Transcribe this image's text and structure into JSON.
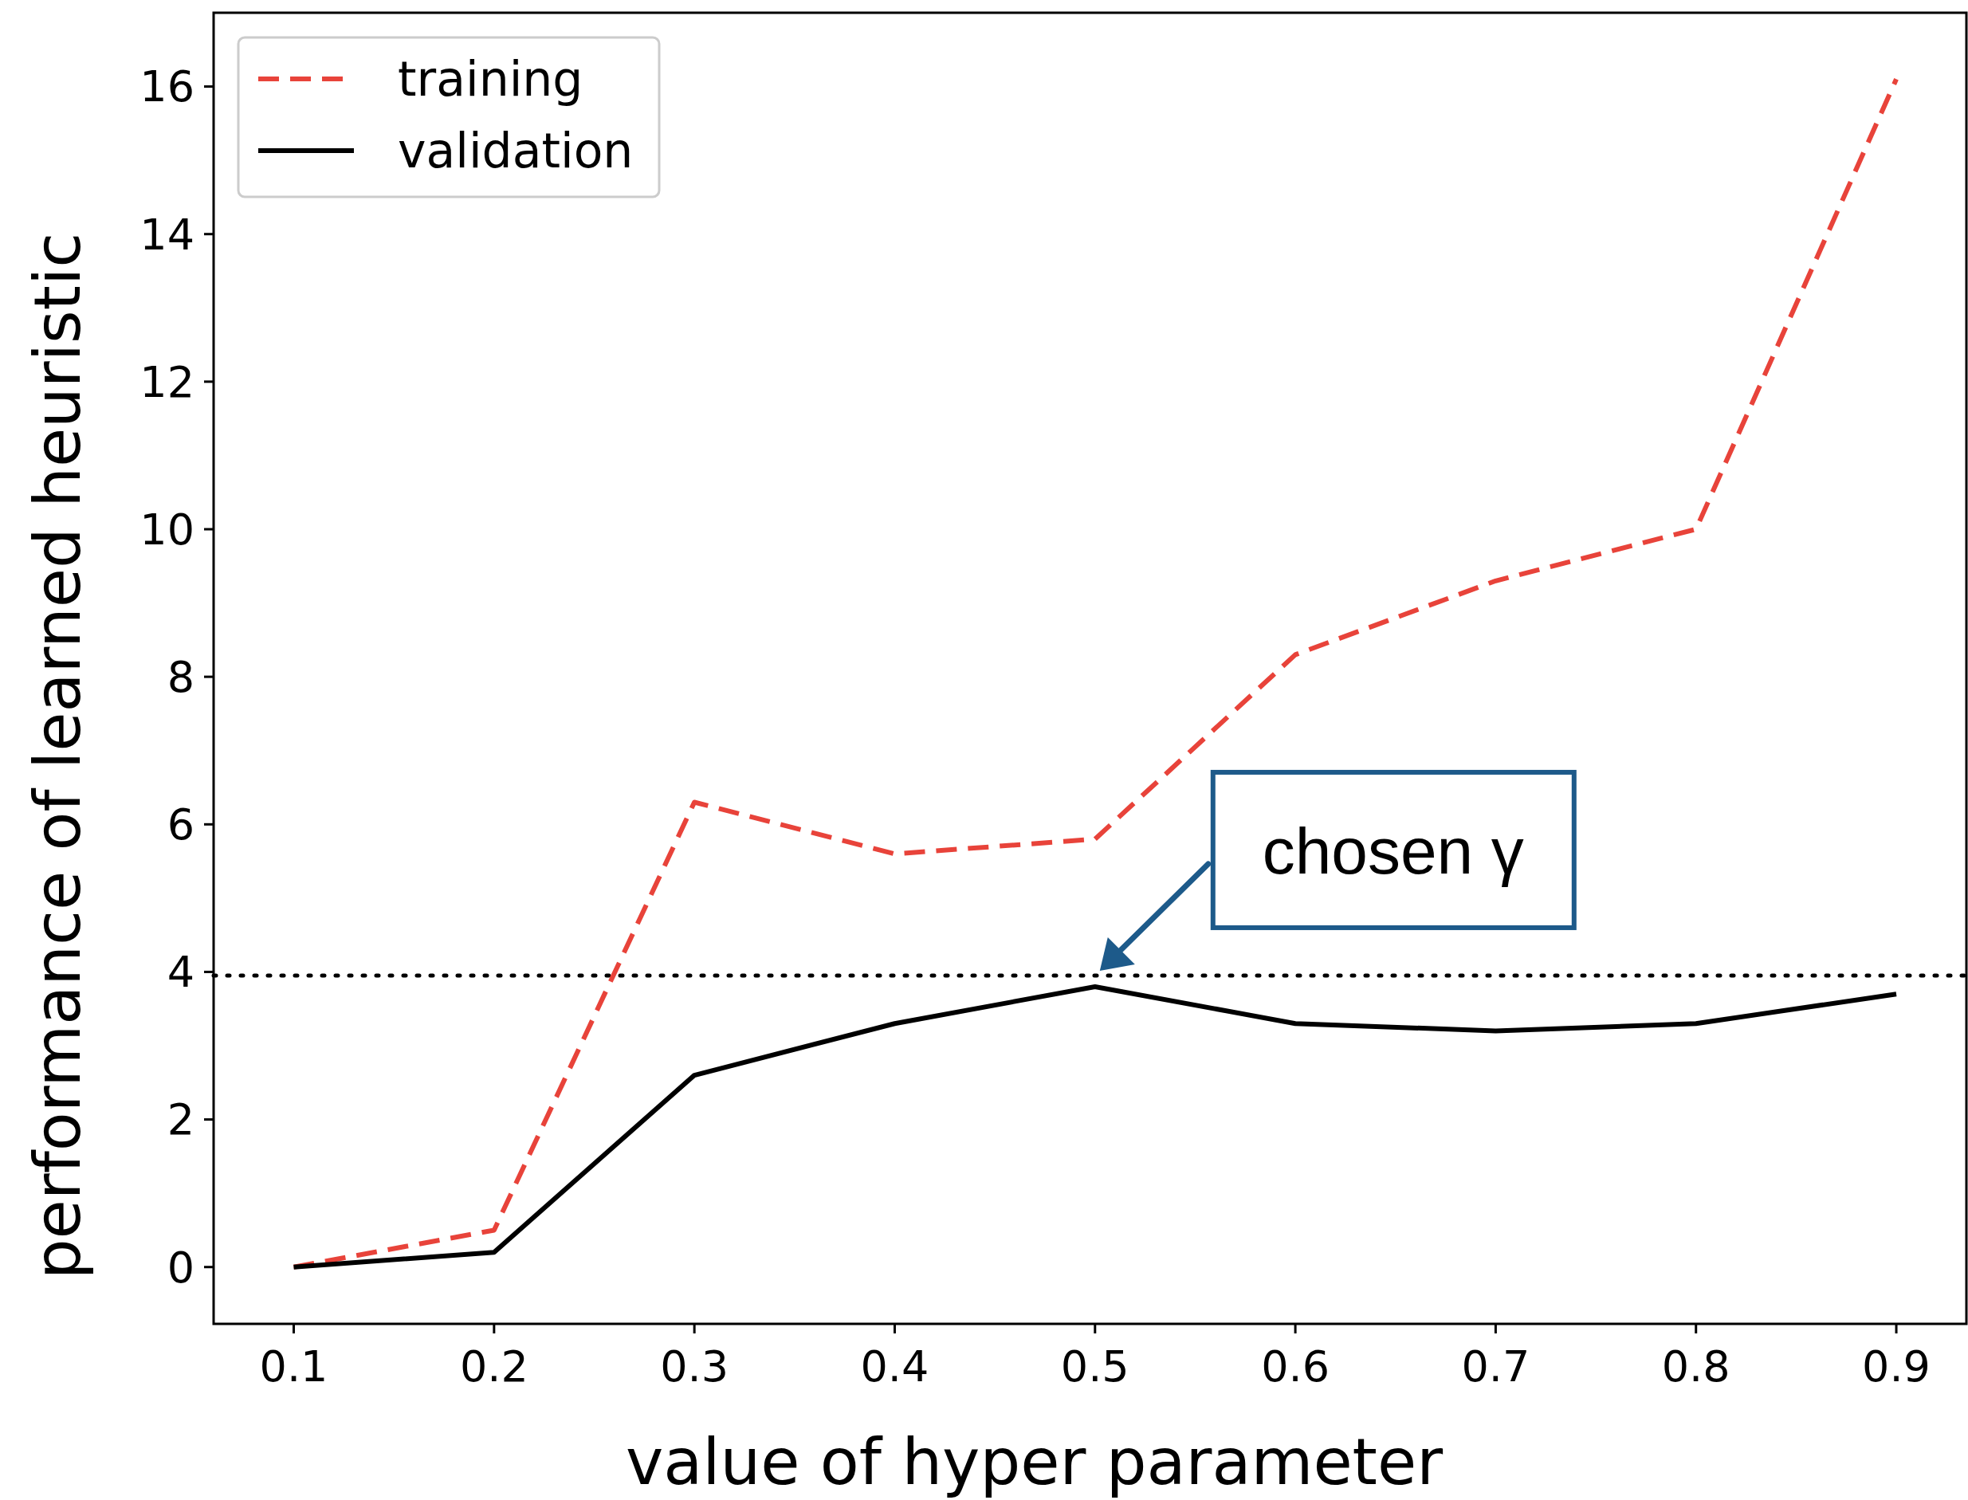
{
  "chart_data": {
    "type": "line",
    "xlabel": "value of hyper parameter",
    "ylabel": "performance of learned heuristic",
    "x": [
      0.1,
      0.2,
      0.3,
      0.4,
      0.5,
      0.6,
      0.7,
      0.8,
      0.9
    ],
    "series": [
      {
        "name": "training",
        "color": "#e8433a",
        "line_style": "dashed",
        "values": [
          0,
          0.5,
          6.3,
          5.6,
          5.8,
          8.3,
          9.3,
          10.0,
          16.1
        ]
      },
      {
        "name": "validation",
        "color": "#000000",
        "line_style": "solid",
        "values": [
          0,
          0.2,
          2.6,
          3.3,
          3.8,
          3.3,
          3.2,
          3.3,
          3.7
        ]
      }
    ],
    "xlim": [
      0.06,
      0.935
    ],
    "xticks": [
      {
        "value": 0.1,
        "label": "0.1"
      },
      {
        "value": 0.2,
        "label": "0.2"
      },
      {
        "value": 0.3,
        "label": "0.3"
      },
      {
        "value": 0.4,
        "label": "0.4"
      },
      {
        "value": 0.5,
        "label": "0.5"
      },
      {
        "value": 0.6,
        "label": "0.6"
      },
      {
        "value": 0.7,
        "label": "0.7"
      },
      {
        "value": 0.8,
        "label": "0.8"
      },
      {
        "value": 0.9,
        "label": "0.9"
      }
    ],
    "ylim": [
      -0.77,
      17
    ],
    "yticks": [
      0,
      2,
      4,
      6,
      8,
      10,
      12,
      14,
      16
    ],
    "ref_lines": [
      {
        "axis": "y",
        "value": 3.95,
        "color": "#000000",
        "line_style": "dotted"
      }
    ],
    "annotations": [
      {
        "text": "chosen γ",
        "x": 0.5,
        "y": 3.8
      }
    ],
    "legend": "top left",
    "grid": false,
    "marker": "none"
  }
}
